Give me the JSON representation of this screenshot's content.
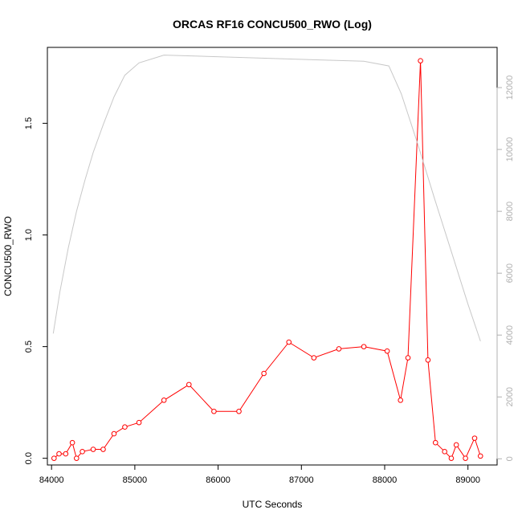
{
  "chart_data": {
    "type": "line",
    "title": "ORCAS RF16 CONCU500_RWO (Log)",
    "xlabel": "UTC Seconds",
    "ylabel": "CONCU500_RWO",
    "xlim": [
      83950,
      89350
    ],
    "ylim": [
      -0.03,
      1.84
    ],
    "y2lim": [
      -200,
      13300
    ],
    "x_ticks": [
      84000,
      85000,
      86000,
      87000,
      88000,
      89000
    ],
    "y_ticks": [
      0.0,
      0.5,
      1.0,
      1.5
    ],
    "y_tick_labels": [
      "0.0",
      "0.5",
      "1.0",
      "1.5"
    ],
    "y2_ticks": [
      0,
      2000,
      4000,
      6000,
      8000,
      10000,
      12000
    ],
    "grid": false,
    "colors": {
      "primary": "#ff0000",
      "secondary": "#c8c8c8",
      "axis": "#000000",
      "secondary_ticks": "#b0b0b0"
    },
    "series": [
      {
        "axis": "left",
        "style": "line+markers",
        "color": "#ff0000",
        "x": [
          84030,
          84090,
          84170,
          84250,
          84300,
          84370,
          84500,
          84620,
          84750,
          84880,
          85050,
          85350,
          85650,
          85950,
          86250,
          86550,
          86850,
          87150,
          87450,
          87750,
          88030,
          88190,
          88280,
          88430,
          88520,
          88610,
          88720,
          88800,
          88860,
          88970,
          89080,
          89150
        ],
        "y": [
          0.0,
          0.02,
          0.02,
          0.07,
          0.0,
          0.03,
          0.04,
          0.04,
          0.11,
          0.14,
          0.16,
          0.26,
          0.33,
          0.21,
          0.21,
          0.38,
          0.52,
          0.45,
          0.49,
          0.5,
          0.48,
          0.26,
          0.45,
          1.78,
          0.44,
          0.07,
          0.03,
          0.0,
          0.06,
          0.0,
          0.09,
          0.01
        ]
      },
      {
        "axis": "right",
        "style": "line",
        "color": "#c8c8c8",
        "x": [
          84020,
          84100,
          84200,
          84300,
          84400,
          84500,
          84620,
          84750,
          84880,
          85050,
          85350,
          87750,
          88050,
          88200,
          88400,
          88600,
          88800,
          89000,
          89150
        ],
        "y": [
          4050,
          5400,
          6800,
          8000,
          9000,
          9900,
          10800,
          11700,
          12400,
          12800,
          13050,
          12850,
          12700,
          11800,
          10150,
          8400,
          6700,
          5000,
          3800
        ]
      }
    ]
  }
}
